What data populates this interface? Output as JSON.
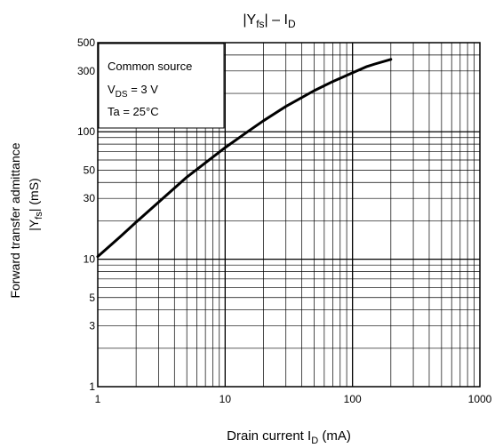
{
  "chart_data": {
    "type": "line",
    "title": {
      "main": "|Yfs| – ID",
      "y_base": "Y",
      "y_sub": "fs",
      "sep": "–",
      "i_base": "I",
      "i_sub": "D"
    },
    "xlabel": {
      "text": "Drain current",
      "var_base": "I",
      "var_sub": "D",
      "unit": "(mA)"
    },
    "ylabel": {
      "line1": "Forward transfer admittance",
      "var_base": "Y",
      "var_sub": "fs",
      "unit": "(mS)"
    },
    "xscale": "log",
    "yscale": "log",
    "xlim": [
      1,
      1000
    ],
    "ylim": [
      1,
      500
    ],
    "x_ticks": [
      {
        "value": 1,
        "label": "1"
      },
      {
        "value": 10,
        "label": "10"
      },
      {
        "value": 100,
        "label": "100"
      },
      {
        "value": 1000,
        "label": "1000"
      }
    ],
    "y_ticks": [
      {
        "value": 1,
        "label": "1"
      },
      {
        "value": 3,
        "label": "3"
      },
      {
        "value": 5,
        "label": "5"
      },
      {
        "value": 10,
        "label": "10"
      },
      {
        "value": 30,
        "label": "30"
      },
      {
        "value": 50,
        "label": "50"
      },
      {
        "value": 100,
        "label": "100"
      },
      {
        "value": 300,
        "label": "300"
      },
      {
        "value": 500,
        "label": "500"
      }
    ],
    "grid": true,
    "annotation": {
      "line1": "Common source",
      "line2_base": "V",
      "line2_sub": "DS",
      "line2_rest": " = 3 V",
      "line3": "Ta = 25°C"
    },
    "series": [
      {
        "x": [
          1,
          1.5,
          2,
          3,
          5,
          7,
          10,
          15,
          20,
          30,
          50,
          70,
          100,
          130,
          150,
          200
        ],
        "y": [
          10.5,
          15,
          19.5,
          28,
          44,
          57,
          75,
          100,
          122,
          158,
          210,
          248,
          290,
          325,
          340,
          370
        ]
      }
    ]
  }
}
